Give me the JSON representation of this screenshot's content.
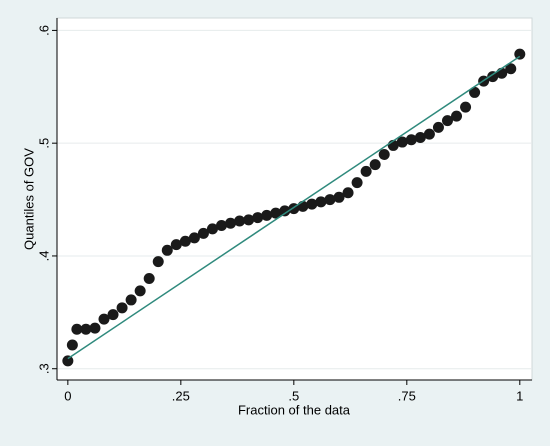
{
  "chart_data": {
    "type": "scatter",
    "xlabel": "Fraction of the data",
    "ylabel": "Quantiles of GOV",
    "xlim": [
      -0.024,
      1.027
    ],
    "ylim": [
      0.29,
      0.611
    ],
    "xticks": [
      0,
      {
        "value": 0.25,
        "label": ".25"
      },
      {
        "value": 0.5,
        "label": ".5"
      },
      {
        "value": 0.75,
        "label": ".75"
      },
      1
    ],
    "yticks": [
      {
        "value": 0.3,
        "label": ".3"
      },
      {
        "value": 0.4,
        "label": ".4"
      },
      {
        "value": 0.5,
        "label": ".5"
      },
      {
        "value": 0.6,
        "label": ".6"
      }
    ],
    "grid": true,
    "series": [
      {
        "type": "scatter",
        "color": "#1a1a1a",
        "x": [
          0,
          0.01,
          0.02,
          0.04,
          0.06,
          0.08,
          0.1,
          0.12,
          0.14,
          0.16,
          0.18,
          0.2,
          0.22,
          0.24,
          0.26,
          0.28,
          0.3,
          0.32,
          0.34,
          0.36,
          0.38,
          0.4,
          0.42,
          0.44,
          0.46,
          0.48,
          0.5,
          0.52,
          0.54,
          0.56,
          0.58,
          0.6,
          0.62,
          0.64,
          0.66,
          0.68,
          0.7,
          0.72,
          0.74,
          0.76,
          0.78,
          0.8,
          0.82,
          0.84,
          0.86,
          0.88,
          0.9,
          0.92,
          0.94,
          0.96,
          0.98,
          1.0
        ],
        "values": [
          0.307,
          0.321,
          0.335,
          0.335,
          0.336,
          0.344,
          0.348,
          0.354,
          0.361,
          0.369,
          0.38,
          0.395,
          0.405,
          0.41,
          0.413,
          0.416,
          0.42,
          0.424,
          0.427,
          0.429,
          0.431,
          0.432,
          0.434,
          0.436,
          0.438,
          0.44,
          0.442,
          0.444,
          0.446,
          0.448,
          0.45,
          0.452,
          0.456,
          0.465,
          0.475,
          0.481,
          0.49,
          0.498,
          0.501,
          0.503,
          0.505,
          0.508,
          0.514,
          0.52,
          0.524,
          0.532,
          0.545,
          0.555,
          0.559,
          0.562,
          0.566,
          0.579
        ]
      },
      {
        "type": "line",
        "color": "#2f8a7d",
        "x": [
          0,
          1
        ],
        "values": [
          0.309,
          0.577
        ]
      }
    ]
  }
}
